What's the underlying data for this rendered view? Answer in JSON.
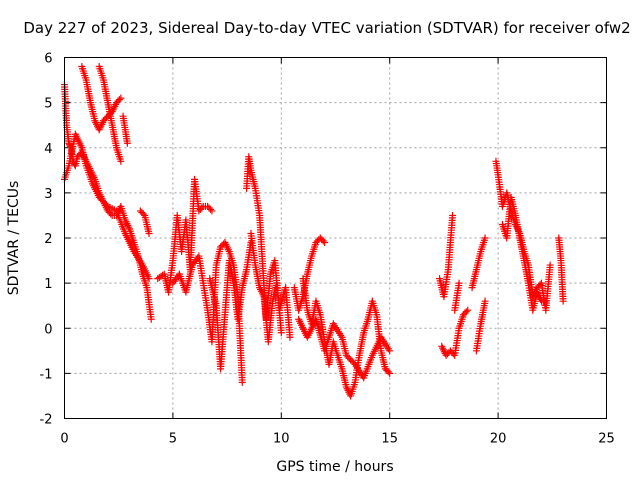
{
  "chart_data": {
    "type": "scatter",
    "title": "Day 227 of 2023, Sidereal Day-to-day VTEC variation (SDTVAR) for receiver ofw2",
    "xlabel": "GPS time / hours",
    "ylabel": "SDTVAR / TECUs",
    "xlim": [
      0,
      25
    ],
    "ylim": [
      -2,
      6
    ],
    "xticks": [
      "0",
      "5",
      "10",
      "15",
      "20",
      "25"
    ],
    "yticks": [
      "-2",
      "-1",
      "0",
      "1",
      "2",
      "3",
      "4",
      "5",
      "6"
    ],
    "grid": true,
    "marker": "+",
    "series": [
      {
        "name": "SDTVAR",
        "color": "#ff0000",
        "segments": [
          [
            [
              0.0,
              5.4
            ],
            [
              0.1,
              4.5
            ],
            [
              0.2,
              4.1
            ],
            [
              0.3,
              4.0
            ],
            [
              0.4,
              3.7
            ],
            [
              0.5,
              3.6
            ],
            [
              0.6,
              3.8
            ],
            [
              0.8,
              3.9
            ],
            [
              1.0,
              3.7
            ],
            [
              1.2,
              3.5
            ],
            [
              1.4,
              3.3
            ],
            [
              1.6,
              3.0
            ],
            [
              1.8,
              2.8
            ],
            [
              2.0,
              2.6
            ],
            [
              2.2,
              2.5
            ],
            [
              2.4,
              2.5
            ],
            [
              2.6,
              2.7
            ],
            [
              2.8,
              2.4
            ],
            [
              3.0,
              2.2
            ],
            [
              3.2,
              1.9
            ],
            [
              3.4,
              1.6
            ],
            [
              3.6,
              1.2
            ],
            [
              3.8,
              0.9
            ],
            [
              4.0,
              0.2
            ]
          ],
          [
            [
              0.0,
              3.3
            ],
            [
              0.2,
              3.6
            ],
            [
              0.5,
              4.3
            ],
            [
              0.8,
              4.0
            ],
            [
              1.0,
              3.6
            ],
            [
              1.3,
              3.2
            ],
            [
              1.6,
              2.9
            ],
            [
              2.0,
              2.7
            ],
            [
              2.4,
              2.6
            ],
            [
              2.8,
              2.1
            ],
            [
              3.2,
              1.7
            ],
            [
              3.6,
              1.4
            ],
            [
              3.9,
              1.1
            ]
          ],
          [
            [
              0.8,
              5.8
            ],
            [
              1.0,
              5.5
            ],
            [
              1.2,
              5.0
            ],
            [
              1.4,
              4.6
            ],
            [
              1.6,
              4.4
            ],
            [
              1.8,
              4.6
            ],
            [
              2.0,
              4.7
            ],
            [
              2.2,
              4.8
            ],
            [
              2.4,
              5.0
            ],
            [
              2.6,
              5.1
            ]
          ],
          [
            [
              1.6,
              5.8
            ],
            [
              1.8,
              5.5
            ],
            [
              2.0,
              5.0
            ],
            [
              2.2,
              4.5
            ],
            [
              2.4,
              4.0
            ],
            [
              2.6,
              3.7
            ]
          ],
          [
            [
              2.7,
              4.7
            ],
            [
              2.8,
              4.4
            ],
            [
              2.9,
              4.1
            ]
          ],
          [
            [
              3.5,
              2.6
            ],
            [
              3.7,
              2.5
            ],
            [
              3.9,
              2.1
            ]
          ],
          [
            [
              4.3,
              1.1
            ],
            [
              4.6,
              1.2
            ],
            [
              4.8,
              0.8
            ],
            [
              5.0,
              1.5
            ],
            [
              5.2,
              2.5
            ],
            [
              5.4,
              1.7
            ],
            [
              5.6,
              2.4
            ],
            [
              5.8,
              1.3
            ],
            [
              6.0,
              3.3
            ],
            [
              6.2,
              2.6
            ],
            [
              6.4,
              2.7
            ],
            [
              6.6,
              2.7
            ],
            [
              6.8,
              2.6
            ]
          ],
          [
            [
              5.0,
              1.0
            ],
            [
              5.3,
              1.2
            ],
            [
              5.6,
              0.8
            ],
            [
              5.9,
              1.4
            ],
            [
              6.2,
              1.6
            ],
            [
              6.4,
              1.0
            ],
            [
              6.6,
              0.4
            ],
            [
              6.8,
              -0.3
            ],
            [
              7.0,
              1.4
            ],
            [
              7.2,
              1.8
            ],
            [
              7.4,
              1.9
            ],
            [
              7.6,
              1.7
            ],
            [
              7.8,
              1.4
            ],
            [
              8.0,
              0.7
            ],
            [
              8.2,
              -1.2
            ]
          ],
          [
            [
              6.7,
              1.1
            ],
            [
              7.0,
              0.5
            ],
            [
              7.2,
              -0.9
            ],
            [
              7.4,
              0.3
            ],
            [
              7.6,
              1.5
            ],
            [
              7.8,
              1.0
            ],
            [
              8.0,
              0.2
            ],
            [
              8.2,
              0.9
            ],
            [
              8.4,
              1.3
            ],
            [
              8.6,
              1.9
            ]
          ],
          [
            [
              8.4,
              3.1
            ],
            [
              8.5,
              3.8
            ],
            [
              8.6,
              3.5
            ],
            [
              8.8,
              3.1
            ],
            [
              9.0,
              2.5
            ],
            [
              9.1,
              1.7
            ],
            [
              9.3,
              0.2
            ],
            [
              9.5,
              1.2
            ],
            [
              9.7,
              1.5
            ],
            [
              9.9,
              0.4
            ],
            [
              10.2,
              0.9
            ],
            [
              10.4,
              -0.2
            ]
          ],
          [
            [
              8.6,
              2.1
            ],
            [
              8.8,
              1.4
            ],
            [
              9.0,
              0.9
            ],
            [
              9.2,
              0.7
            ],
            [
              9.4,
              -0.3
            ],
            [
              9.6,
              0.6
            ],
            [
              9.8,
              1.0
            ],
            [
              10.0,
              -0.1
            ]
          ],
          [
            [
              10.6,
              0.9
            ],
            [
              10.8,
              0.4
            ],
            [
              11.0,
              0.7
            ],
            [
              11.2,
              1.2
            ],
            [
              11.4,
              1.6
            ],
            [
              11.6,
              1.9
            ],
            [
              11.8,
              2.0
            ],
            [
              12.0,
              1.9
            ]
          ],
          [
            [
              11.0,
              1.1
            ],
            [
              11.2,
              0.4
            ],
            [
              11.4,
              0.1
            ],
            [
              11.6,
              0.6
            ],
            [
              11.8,
              0.3
            ],
            [
              12.0,
              -0.3
            ],
            [
              12.2,
              -0.8
            ],
            [
              12.4,
              -0.3
            ],
            [
              12.6,
              -0.6
            ],
            [
              12.8,
              -0.9
            ],
            [
              13.0,
              -1.3
            ],
            [
              13.2,
              -1.5
            ],
            [
              13.4,
              -1.2
            ],
            [
              13.6,
              -0.6
            ],
            [
              13.8,
              -0.1
            ],
            [
              14.0,
              0.2
            ],
            [
              14.2,
              0.6
            ],
            [
              14.4,
              0.3
            ],
            [
              14.6,
              -0.5
            ],
            [
              14.8,
              -0.9
            ],
            [
              15.0,
              -1.0
            ]
          ],
          [
            [
              10.8,
              0.2
            ],
            [
              11.2,
              -0.2
            ],
            [
              11.6,
              0.2
            ],
            [
              12.0,
              -0.5
            ],
            [
              12.4,
              0.1
            ],
            [
              12.8,
              -0.2
            ],
            [
              13.0,
              -0.6
            ],
            [
              13.4,
              -0.8
            ],
            [
              13.8,
              -1.1
            ],
            [
              14.2,
              -0.6
            ],
            [
              14.6,
              -0.2
            ],
            [
              15.0,
              -0.5
            ]
          ],
          [
            [
              17.3,
              1.1
            ],
            [
              17.5,
              0.7
            ],
            [
              17.7,
              1.3
            ],
            [
              17.9,
              2.5
            ]
          ],
          [
            [
              17.4,
              -0.4
            ],
            [
              17.6,
              -0.6
            ],
            [
              17.8,
              -0.5
            ],
            [
              18.0,
              -0.6
            ],
            [
              18.2,
              0.0
            ],
            [
              18.4,
              0.3
            ],
            [
              18.6,
              0.4
            ]
          ],
          [
            [
              18.0,
              0.4
            ],
            [
              18.2,
              1.0
            ]
          ],
          [
            [
              19.0,
              -0.5
            ],
            [
              19.2,
              0.1
            ],
            [
              19.4,
              0.6
            ]
          ],
          [
            [
              18.8,
              0.9
            ],
            [
              19.0,
              1.3
            ],
            [
              19.2,
              1.7
            ],
            [
              19.4,
              2.0
            ]
          ],
          [
            [
              19.9,
              3.7
            ],
            [
              20.0,
              3.4
            ],
            [
              20.2,
              2.7
            ],
            [
              20.4,
              3.0
            ],
            [
              20.6,
              2.6
            ],
            [
              20.8,
              2.3
            ],
            [
              21.0,
              2.1
            ],
            [
              21.2,
              1.7
            ],
            [
              21.4,
              1.4
            ],
            [
              21.6,
              0.7
            ],
            [
              21.8,
              0.9
            ],
            [
              22.0,
              1.0
            ],
            [
              22.2,
              0.4
            ],
            [
              22.4,
              1.4
            ]
          ],
          [
            [
              20.2,
              2.3
            ],
            [
              20.4,
              2.0
            ],
            [
              20.6,
              2.9
            ],
            [
              20.8,
              2.5
            ],
            [
              21.0,
              2.0
            ],
            [
              21.2,
              1.5
            ],
            [
              21.4,
              1.0
            ],
            [
              21.6,
              0.4
            ],
            [
              21.8,
              0.8
            ],
            [
              22.0,
              0.6
            ],
            [
              22.2,
              0.6
            ]
          ],
          [
            [
              22.8,
              2.0
            ],
            [
              22.9,
              1.5
            ],
            [
              23.0,
              0.6
            ]
          ]
        ]
      }
    ]
  }
}
